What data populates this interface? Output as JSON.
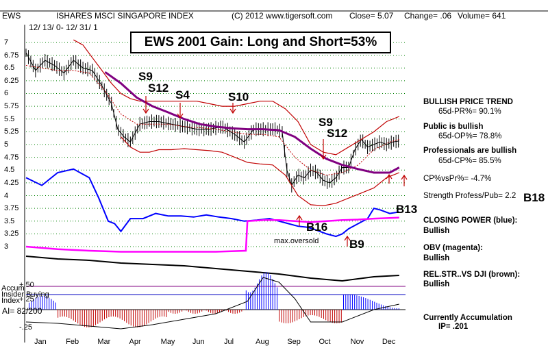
{
  "header": {
    "symbol": "EWS",
    "name": "ISHARES MSCI SINGAPORE INDEX",
    "copyright": "(C) 2012 www.tigersoft.com",
    "close": "Close=  5.07",
    "change": "Change= .06",
    "volume": "Volume= 641",
    "date_range": "12/ 13/ 0-  12/ 31/ 1"
  },
  "chart_title": "EWS 2001 Gain: Long and Short=53%",
  "chart_data": {
    "type": "line",
    "title": "EWS 2001 Gain: Long and Short=53%",
    "y_tick_labels": [
      "7",
      "6.75",
      "6.5",
      "6.25",
      "6",
      "5.75",
      "5.5",
      "5.25",
      "5",
      "4.75",
      "4.5",
      "4.25",
      "4",
      "3.75",
      "3.5",
      "3.25",
      "3"
    ],
    "y_ticks": [
      7,
      6.75,
      6.5,
      6.25,
      6,
      5.75,
      5.5,
      5.25,
      5,
      4.75,
      4.5,
      4.25,
      4,
      3.75,
      3.5,
      3.25,
      3
    ],
    "ylim": [
      2.92,
      7.08
    ],
    "months": [
      "Jan",
      "Feb",
      "Mar",
      "Apr",
      "May",
      "Jun",
      "Jul",
      "Aug",
      "Sep",
      "Oct",
      "Nov",
      "Dec"
    ],
    "xlim": [
      0,
      12
    ],
    "series": [
      {
        "name": "price",
        "color": "#000000",
        "x": [
          0.0,
          0.3,
          0.6,
          0.9,
          1.2,
          1.5,
          1.8,
          2.1,
          2.4,
          2.7,
          2.9,
          3.1,
          3.3,
          3.6,
          3.9,
          4.2,
          4.6,
          5.0,
          5.4,
          5.8,
          6.2,
          6.6,
          6.9,
          7.2,
          7.6,
          7.9,
          8.1,
          8.25,
          8.4,
          8.6,
          8.8,
          9.0,
          9.2,
          9.4,
          9.6,
          9.8,
          10.0,
          10.2,
          10.4,
          10.6,
          10.8,
          11.0,
          11.2,
          11.4,
          11.6,
          11.8
        ],
        "values": [
          6.8,
          6.45,
          6.65,
          6.55,
          6.4,
          6.65,
          6.5,
          6.45,
          6.15,
          5.8,
          5.3,
          5.15,
          5.05,
          5.4,
          5.45,
          5.45,
          5.4,
          5.35,
          5.3,
          5.3,
          5.35,
          5.2,
          5.05,
          5.3,
          5.3,
          5.3,
          5.25,
          4.5,
          4.2,
          4.4,
          4.35,
          4.5,
          4.45,
          4.3,
          4.25,
          4.35,
          4.55,
          4.55,
          4.9,
          5.1,
          4.95,
          5.0,
          5.05,
          5.0,
          5.05,
          5.07
        ]
      },
      {
        "name": "upper band",
        "color": "#c00000",
        "x": [
          1.5,
          1.8,
          2.1,
          2.4,
          2.7,
          3.0,
          3.3,
          3.6,
          3.9,
          4.2,
          4.6,
          5.0,
          5.4,
          5.8,
          6.2,
          6.6,
          7.0,
          7.4,
          7.8,
          8.2,
          8.6,
          9.0,
          9.4,
          9.8,
          10.2,
          10.6,
          11.0,
          11.4,
          11.8
        ],
        "values": [
          7.05,
          6.95,
          6.7,
          6.45,
          6.2,
          6.0,
          5.9,
          5.85,
          5.85,
          5.85,
          5.85,
          5.85,
          5.85,
          5.8,
          5.75,
          5.75,
          5.8,
          5.85,
          5.85,
          5.7,
          5.45,
          5.0,
          4.85,
          4.8,
          4.95,
          5.1,
          5.25,
          5.45,
          5.55
        ]
      },
      {
        "name": "middle band",
        "color": "#c00000",
        "x": [
          0.0,
          0.5,
          1.0,
          1.5,
          2.0,
          2.5,
          3.0,
          3.5,
          4.0,
          4.5,
          5.0,
          5.5,
          6.0,
          6.5,
          7.0,
          7.5,
          8.0,
          8.5,
          9.0,
          9.5,
          10.0,
          10.5,
          11.0,
          11.5,
          11.8
        ],
        "values": [
          6.55,
          6.5,
          6.45,
          6.45,
          6.4,
          6.05,
          5.6,
          5.4,
          5.4,
          5.4,
          5.35,
          5.33,
          5.3,
          5.25,
          5.2,
          5.2,
          5.15,
          4.75,
          4.5,
          4.4,
          4.45,
          4.6,
          4.9,
          5.05,
          5.1
        ]
      },
      {
        "name": "lower band",
        "color": "#c00000",
        "x": [
          3.0,
          3.3,
          3.6,
          3.9,
          4.2,
          4.6,
          5.0,
          5.4,
          5.8,
          6.2,
          6.6,
          7.0,
          7.4,
          7.8,
          8.2,
          8.6,
          9.0,
          9.4,
          9.8,
          10.2,
          10.6,
          11.0,
          11.4,
          11.8
        ],
        "values": [
          5.15,
          4.95,
          4.85,
          4.85,
          4.9,
          4.9,
          4.92,
          4.9,
          4.88,
          4.85,
          4.75,
          4.65,
          4.62,
          4.6,
          4.4,
          4.0,
          3.82,
          3.8,
          3.85,
          3.95,
          4.05,
          4.15,
          4.35,
          4.45
        ]
      },
      {
        "name": "65-day MA",
        "color": "#800080",
        "x": [
          2.5,
          3.0,
          3.5,
          4.0,
          4.5,
          5.0,
          5.5,
          6.0,
          6.5,
          7.0,
          7.5,
          8.0,
          8.5,
          9.0,
          9.5,
          10.0,
          10.5,
          11.0,
          11.5,
          11.8
        ],
        "values": [
          6.42,
          6.2,
          5.92,
          5.75,
          5.63,
          5.5,
          5.4,
          5.35,
          5.32,
          5.3,
          5.3,
          5.28,
          5.15,
          4.92,
          4.72,
          4.6,
          4.52,
          4.45,
          4.45,
          4.55
        ]
      },
      {
        "name": "CLOSING POWER (blue)",
        "color": "#0000ff",
        "x": [
          0.0,
          0.5,
          1.0,
          1.5,
          2.0,
          2.3,
          2.6,
          2.8,
          3.0,
          3.3,
          3.7,
          4.1,
          4.5,
          4.9,
          5.3,
          5.7,
          6.1,
          6.5,
          6.9,
          7.3,
          7.7,
          8.0,
          8.3,
          8.6,
          8.9,
          9.2,
          9.5,
          9.8,
          10.0,
          10.2,
          10.5,
          10.8,
          11.0,
          11.2,
          11.5,
          11.8
        ],
        "values": [
          4.35,
          4.2,
          4.45,
          4.52,
          4.35,
          3.95,
          3.5,
          3.45,
          3.3,
          3.55,
          3.55,
          3.65,
          3.6,
          3.6,
          3.58,
          3.62,
          3.58,
          3.55,
          3.5,
          3.52,
          3.55,
          3.5,
          3.45,
          3.4,
          3.38,
          3.32,
          3.25,
          3.2,
          3.25,
          3.35,
          3.45,
          3.55,
          3.75,
          3.72,
          3.65,
          3.68
        ]
      },
      {
        "name": "OBV (magenta)",
        "color": "#ff00ff",
        "x": [
          0.0,
          1.0,
          2.0,
          3.0,
          4.0,
          5.0,
          6.0,
          6.95,
          7.0,
          7.5,
          8.0,
          8.5,
          9.0,
          9.5,
          10.0,
          10.5,
          11.0,
          11.5,
          11.8
        ],
        "values": [
          3.0,
          2.95,
          2.92,
          2.9,
          2.9,
          2.9,
          2.9,
          2.92,
          3.5,
          3.52,
          3.52,
          3.5,
          3.48,
          3.5,
          3.52,
          3.53,
          3.55,
          3.56,
          3.57
        ]
      }
    ]
  },
  "signals": {
    "s9_a": "S9",
    "s12_a": "S12",
    "s4": "S4",
    "s10": "S10",
    "s9_b": "S9",
    "s12_b": "S12",
    "b16": "B16",
    "b9": "B9",
    "b18": "B18",
    "b13": "B13"
  },
  "annotation": "max.oversold",
  "lower_panel": {
    "label_line1": "Accum",
    "label_line2": "Insider Buying",
    "label_line3": "Index",
    "ai": "AI= 82/200",
    "tick_labels": [
      "+.50",
      "+.25",
      "-.25"
    ]
  },
  "right_panel": {
    "trend": "BULLISH PRICE TREND",
    "pr": "65d-PR%= 90.1%",
    "public": "Public is bullish",
    "op": "65d-OP%= 78.8%",
    "pros": "Professionals are bullish",
    "cp": "65d-CP%= 85.5%",
    "cpvspr": "CP%vsPr%= -4.7%",
    "strength": "Strength Profess/Pub= 2.2",
    "closing_power": "CLOSING POWER (blue):",
    "closing_power_state": "Bullish",
    "obv": "OBV (magenta):",
    "obv_state": "Bullish",
    "relstr": "REL.STR..VS DJI (brown):",
    "relstr_state": "Bullish",
    "accum": "Currently Accumulation",
    "ip": "IP=  .201"
  },
  "colors": {
    "price": "#000000",
    "bands": "#c00000",
    "ma": "#800080",
    "cp": "#0000ff",
    "obv": "#ff00ff",
    "accum_pos": "#0000ff",
    "accum_neg": "#c00000",
    "grid": "#008000"
  }
}
